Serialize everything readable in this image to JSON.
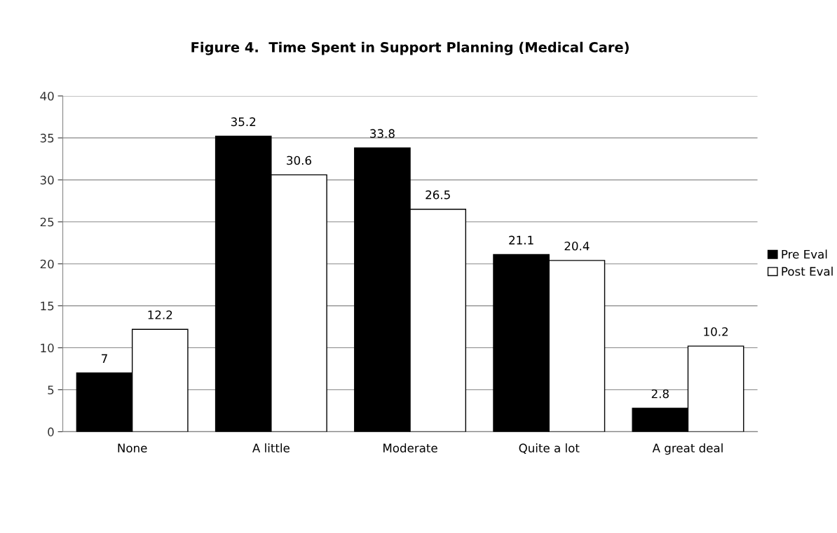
{
  "chart_data": {
    "type": "bar",
    "title": "Figure 4.  Time Spent in Support Planning (Medical Care)",
    "categories": [
      "None",
      "A little",
      "Moderate",
      "Quite a lot",
      "A great deal"
    ],
    "series": [
      {
        "name": "Pre Eval",
        "color": "#000000",
        "values": [
          7,
          35.2,
          33.8,
          21.1,
          2.8
        ]
      },
      {
        "name": "Post Eval",
        "color": "#ffffff",
        "values": [
          12.2,
          30.6,
          26.5,
          20.4,
          10.2
        ]
      }
    ],
    "ylim": [
      0,
      40
    ],
    "yticks": [
      0,
      5,
      10,
      15,
      20,
      25,
      30,
      35,
      40
    ],
    "grid": "y",
    "legend": "right",
    "data_labels": true
  }
}
